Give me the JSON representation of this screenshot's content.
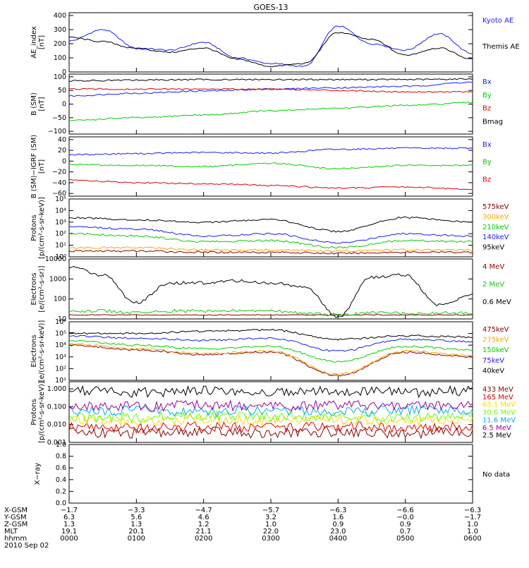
{
  "title": "GOES-13",
  "footer_date": "2010 Sep 02",
  "colors": {
    "black": "#000000",
    "blue": "#1a1aff",
    "green": "#00d000",
    "red": "#e00000",
    "orange": "#ffa500",
    "darkred": "#8b0000",
    "teal": "#00b3b3",
    "cyan": "#00aaff",
    "lime": "#66ff00",
    "yellow": "#ffd700",
    "purple": "#9b009b",
    "brown": "#a0522d"
  },
  "chart_data": [
    {
      "type": "line",
      "ylabel": "AE_index\n[nT]",
      "yticks": [
        "0",
        "100",
        "200",
        "300",
        "400"
      ],
      "ylim": [
        0,
        420
      ],
      "scale": "linear",
      "x": [
        "0000",
        "0030",
        "0100",
        "0130",
        "0200",
        "0230",
        "0300",
        "0330",
        "0400",
        "0430",
        "0500",
        "0530",
        "0600"
      ],
      "series": [
        {
          "name": "Kyoto AE",
          "color": "blue",
          "values": [
            220,
            300,
            170,
            155,
            210,
            100,
            60,
            40,
            325,
            200,
            155,
            270,
            130
          ]
        },
        {
          "name": "Themis AE",
          "color": "black",
          "values": [
            245,
            215,
            165,
            140,
            170,
            90,
            40,
            60,
            280,
            230,
            120,
            170,
            90
          ]
        }
      ]
    },
    {
      "type": "line",
      "ylabel": "B (SM)\n[nT]",
      "yticks": [
        "−100",
        "−50",
        "0",
        "50",
        "100"
      ],
      "ylim": [
        -110,
        110
      ],
      "scale": "linear",
      "x": [
        "0000",
        "0100",
        "0200",
        "0300",
        "0400",
        "0500",
        "0600"
      ],
      "series": [
        {
          "name": "Bx",
          "color": "blue",
          "values": [
            30,
            40,
            48,
            55,
            60,
            65,
            80
          ]
        },
        {
          "name": "By",
          "color": "green",
          "values": [
            -60,
            -50,
            -40,
            -25,
            -15,
            -5,
            5
          ]
        },
        {
          "name": "Bz",
          "color": "red",
          "values": [
            55,
            55,
            55,
            55,
            50,
            45,
            45
          ]
        },
        {
          "name": "Bmag",
          "color": "black",
          "values": [
            85,
            88,
            90,
            90,
            90,
            90,
            92
          ]
        }
      ]
    },
    {
      "type": "line",
      "ylabel": "B (SM)−IGRF (SM)\n[nT]",
      "yticks": [
        "−60",
        "−40",
        "−20",
        "0",
        "20",
        "40"
      ],
      "ylim": [
        -65,
        45
      ],
      "scale": "linear",
      "x": [
        "0000",
        "0100",
        "0200",
        "0300",
        "0400",
        "0500",
        "0600"
      ],
      "series": [
        {
          "name": "Bx",
          "color": "blue",
          "values": [
            12,
            14,
            16,
            15,
            22,
            24,
            24
          ]
        },
        {
          "name": "By",
          "color": "green",
          "values": [
            -6,
            -8,
            -10,
            -4,
            -14,
            -8,
            -8
          ]
        },
        {
          "name": "Bz",
          "color": "red",
          "values": [
            -35,
            -40,
            -42,
            -45,
            -50,
            -48,
            -52
          ]
        }
      ]
    },
    {
      "type": "line",
      "ylabel": "Protons\n[p/(cm²-s-sr-keV)]",
      "yticks": [
        "10⁰",
        "10¹",
        "10²",
        "10³",
        "10⁴",
        "10⁵"
      ],
      "ylim": [
        0,
        5
      ],
      "scale": "log-decades",
      "x": [
        "0000",
        "0100",
        "0200",
        "0300",
        "0400",
        "0500",
        "0600"
      ],
      "series": [
        {
          "name": "575keV",
          "color": "darkred",
          "values": [
            0.5,
            0.5,
            0.4,
            0.4,
            0.3,
            0.4,
            0.4
          ]
        },
        {
          "name": "300keV",
          "color": "orange",
          "values": [
            0.8,
            0.8,
            0.6,
            0.6,
            0.5,
            0.6,
            0.6
          ]
        },
        {
          "name": "210keV",
          "color": "green",
          "values": [
            2.0,
            1.8,
            1.3,
            1.4,
            0.8,
            1.4,
            1.3
          ]
        },
        {
          "name": "140keV",
          "color": "blue",
          "values": [
            2.6,
            2.4,
            1.8,
            2.0,
            1.2,
            2.0,
            1.8
          ]
        },
        {
          "name": "95keV",
          "color": "black",
          "values": [
            3.4,
            3.2,
            3.0,
            3.2,
            2.2,
            3.4,
            3.0
          ]
        }
      ]
    },
    {
      "type": "line",
      "ylabel": "Electrons\n[e/(cm²-s-sr)]",
      "yticks": [
        "10",
        "100",
        "1000",
        "10000"
      ],
      "ylim": [
        1,
        4
      ],
      "scale": "log-decades",
      "x": [
        "0000",
        "0030",
        "0100",
        "0130",
        "0200",
        "0230",
        "0300",
        "0330",
        "0400",
        "0430",
        "0500",
        "0530",
        "0600"
      ],
      "series": [
        {
          "name": "4 MeV",
          "color": "darkred",
          "values": [
            1.2,
            1.2,
            1.2,
            1.2,
            1.2,
            1.2,
            1.2,
            1.2,
            1.2,
            1.2,
            1.2,
            1.2,
            1.2
          ]
        },
        {
          "name": "2 MeV",
          "color": "green",
          "values": [
            1.4,
            1.4,
            1.3,
            1.4,
            1.4,
            1.4,
            1.4,
            1.3,
            1.2,
            1.3,
            1.3,
            1.3,
            1.3
          ]
        },
        {
          "name": "0.6 MeV",
          "color": "black",
          "values": [
            3.6,
            3.2,
            1.8,
            2.8,
            2.8,
            2.9,
            2.8,
            2.6,
            1.1,
            3.1,
            3.2,
            1.7,
            2.2
          ]
        }
      ]
    },
    {
      "type": "line",
      "ylabel": "Electrons\n[e/(cm²-s-sr-keV)]",
      "yticks": [
        "10¹",
        "10²",
        "10³",
        "10⁴",
        "10⁵",
        "10⁶"
      ],
      "ylim": [
        1,
        6
      ],
      "scale": "log-decades",
      "x": [
        "0000",
        "0100",
        "0200",
        "0300",
        "0400",
        "0500",
        "0600"
      ],
      "series": [
        {
          "name": "475keV",
          "color": "darkred",
          "values": [
            4.0,
            3.6,
            3.2,
            3.4,
            1.4,
            3.4,
            3.0
          ]
        },
        {
          "name": "275keV",
          "color": "orange",
          "values": [
            4.1,
            3.7,
            3.3,
            3.5,
            1.5,
            3.5,
            3.1
          ]
        },
        {
          "name": "150keV",
          "color": "green",
          "values": [
            4.4,
            4.0,
            3.7,
            3.9,
            2.6,
            3.9,
            3.6
          ]
        },
        {
          "name": "75keV",
          "color": "blue",
          "values": [
            4.8,
            4.6,
            4.4,
            4.6,
            3.5,
            4.5,
            4.3
          ]
        },
        {
          "name": "40keV",
          "color": "black",
          "values": [
            5.0,
            5.0,
            5.2,
            5.3,
            4.5,
            4.8,
            4.7
          ]
        }
      ]
    },
    {
      "type": "line",
      "ylabel": "Protons\n[p/(cm²-s-sr-keV)]",
      "yticks": [
        "0.001",
        "0.010",
        "0.100",
        "1.000"
      ],
      "ylim": [
        -3,
        0.4
      ],
      "scale": "log-decades",
      "x": [
        "0000",
        "0100",
        "0200",
        "0300",
        "0400",
        "0500",
        "0600"
      ],
      "series": [
        {
          "name": "433 MeV",
          "color": "darkred",
          "values": [
            -2.4,
            -2.5,
            -2.4,
            -2.5,
            -2.4,
            -2.5,
            -2.4
          ]
        },
        {
          "name": "165 MeV",
          "color": "red",
          "values": [
            -2.1,
            -2.2,
            -2.1,
            -2.2,
            -2.1,
            -2.2,
            -2.1
          ]
        },
        {
          "name": "63.1 MeV",
          "color": "yellow",
          "values": [
            -1.7,
            -1.8,
            -1.7,
            -1.8,
            -1.7,
            -1.8,
            -1.7
          ]
        },
        {
          "name": "30.6 MeV",
          "color": "lime",
          "values": [
            -1.6,
            -1.6,
            -1.5,
            -1.6,
            -1.5,
            -1.6,
            -1.5
          ]
        },
        {
          "name": "11.6 MeV",
          "color": "cyan",
          "values": [
            -1.3,
            -1.2,
            -1.3,
            -1.2,
            -1.3,
            -1.2,
            -1.2
          ]
        },
        {
          "name": "6.5 MeV",
          "color": "purple",
          "values": [
            -0.9,
            -1.0,
            -0.9,
            -1.0,
            -0.9,
            -1.0,
            -0.9
          ]
        },
        {
          "name": "2.5 MeV",
          "color": "black",
          "values": [
            -0.1,
            -0.2,
            -0.1,
            -0.2,
            -0.1,
            -0.2,
            -0.1
          ]
        }
      ]
    },
    {
      "type": "line",
      "ylabel": "X−ray",
      "yticks": [
        "0.0",
        "0.2",
        "0.4",
        "0.6",
        "0.8",
        "1.0"
      ],
      "ylim": [
        0,
        1
      ],
      "scale": "linear",
      "x": [],
      "series": [],
      "note": "No data"
    }
  ],
  "footer": {
    "rows": [
      {
        "label": "X-GSM",
        "values": [
          "−1.7",
          "−3.3",
          "−4.7",
          "−5.7",
          "−6.3",
          "−6.6",
          "−6.3"
        ]
      },
      {
        "label": "Y-GSM",
        "values": [
          "6.3",
          "5.6",
          "4.6",
          "3.2",
          "1.6",
          "−0.0",
          "−1.7"
        ]
      },
      {
        "label": "Z-GSM",
        "values": [
          "1.3",
          "1.3",
          "1.2",
          "1.0",
          "0.9",
          "0.9",
          "1.0"
        ]
      },
      {
        "label": "MLT",
        "values": [
          "19.1",
          "20.1",
          "21.1",
          "22.0",
          "23.0",
          "0.7",
          "1.0"
        ]
      },
      {
        "label": "hhmm",
        "values": [
          "0000",
          "0100",
          "0200",
          "0300",
          "0400",
          "0500",
          "0600"
        ]
      }
    ]
  }
}
